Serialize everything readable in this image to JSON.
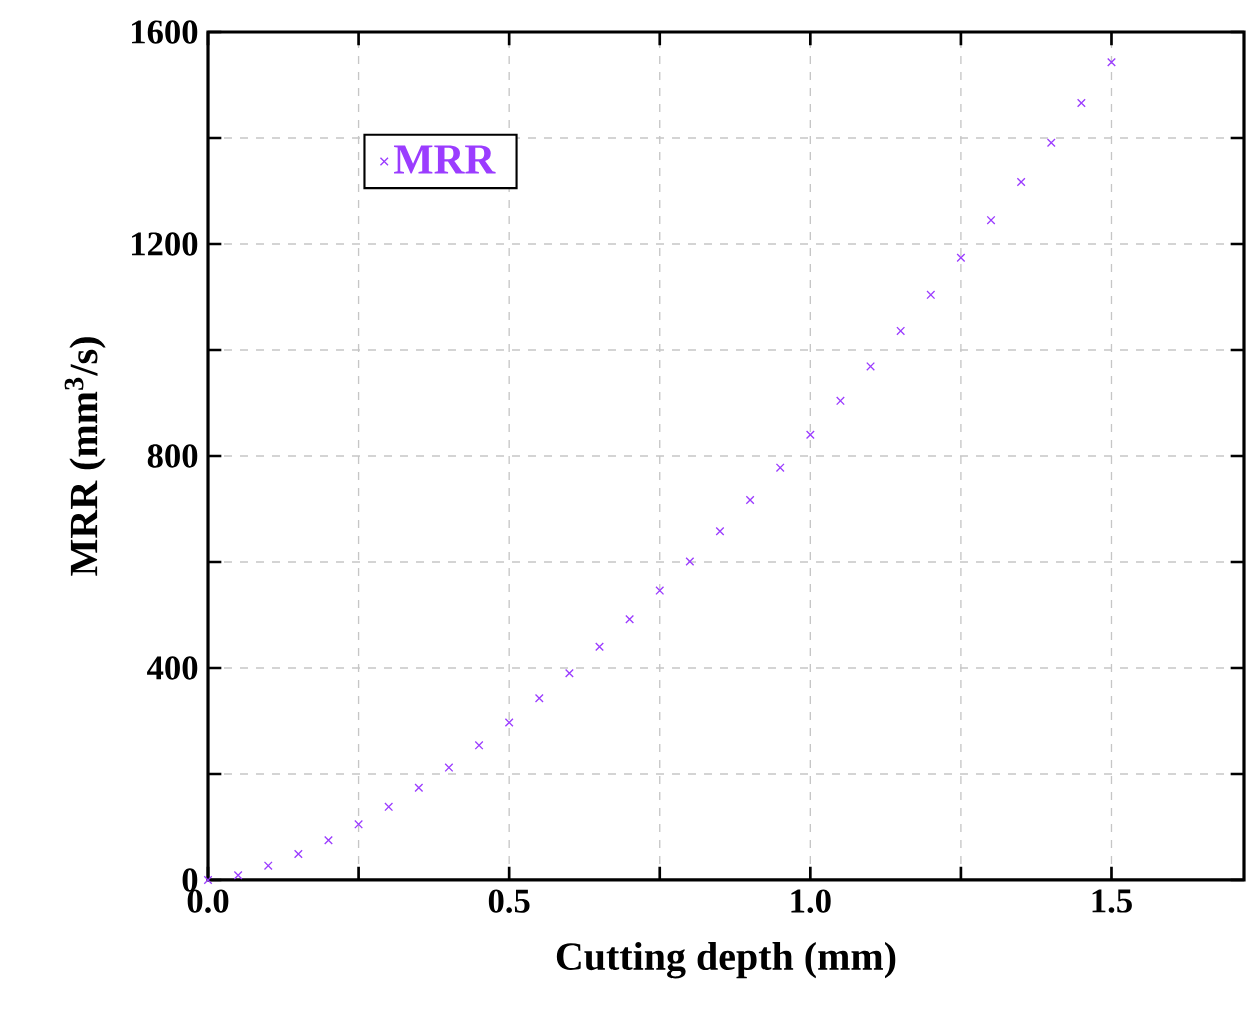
{
  "chart_data": {
    "type": "scatter",
    "xlabel": "Cutting depth (mm)",
    "ylabel": "MRR (mm$^{3}$/s)",
    "x": [
      0,
      0.05,
      0.1,
      0.15,
      0.2,
      0.25,
      0.3,
      0.35,
      0.4,
      0.45,
      0.5,
      0.55,
      0.6,
      0.65,
      0.7,
      0.75,
      0.8,
      0.85,
      0.9,
      0.95,
      1.0,
      1.05,
      1.1,
      1.15,
      1.2,
      1.25,
      1.3,
      1.35,
      1.4,
      1.45,
      1.5
    ],
    "series": [
      {
        "name": "MRR",
        "color": "#9b3cff",
        "values": [
          0,
          9,
          27,
          49,
          75,
          105,
          138,
          174,
          212,
          254,
          297,
          343,
          390,
          440,
          492,
          546,
          601,
          658,
          717,
          778,
          840,
          904,
          969,
          1036,
          1104,
          1174,
          1245,
          1317,
          1391,
          1466,
          1543
        ]
      }
    ],
    "xlim": [
      0,
      1.72
    ],
    "ylim": [
      0,
      1600
    ],
    "xticks": [
      {
        "value": 0,
        "label": "0.0"
      },
      {
        "value": 0.25,
        "label": null
      },
      {
        "value": 0.5,
        "label": "0.5"
      },
      {
        "value": 0.75,
        "label": null
      },
      {
        "value": 1.0,
        "label": "1.0"
      },
      {
        "value": 1.25,
        "label": null
      },
      {
        "value": 1.5,
        "label": "1.5"
      }
    ],
    "yticks": [
      0,
      {
        "value": 200,
        "label": null
      },
      400,
      {
        "value": 600,
        "label": null
      },
      800,
      {
        "value": 1000,
        "label": null
      },
      1200,
      {
        "value": 1400,
        "label": null
      },
      1600
    ],
    "grid": true,
    "legend": "top left",
    "marker": "cross"
  }
}
